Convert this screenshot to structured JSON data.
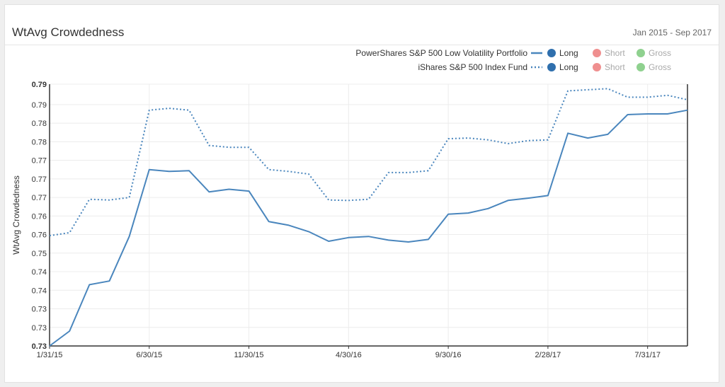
{
  "header": {
    "title": "WtAvg Crowdedness",
    "date_range": "Jan 2015 - Sep 2017"
  },
  "legend": {
    "rows": [
      {
        "name": "PowerShares S&P 500 Low Volatility Portfolio",
        "style": "solid",
        "toggles": [
          {
            "label": "Long",
            "active": true
          },
          {
            "label": "Short",
            "active": false
          },
          {
            "label": "Gross",
            "active": false
          }
        ]
      },
      {
        "name": "iShares S&P 500 Index Fund",
        "style": "dotted",
        "toggles": [
          {
            "label": "Long",
            "active": true
          },
          {
            "label": "Short",
            "active": false
          },
          {
            "label": "Gross",
            "active": false
          }
        ]
      }
    ],
    "colors": {
      "long": "#2f6fad",
      "short": "#ef8f8f",
      "gross": "#8fd18f"
    }
  },
  "chart_data": {
    "type": "line",
    "ylabel": "WtAvg Crowdedness",
    "xlabel": "",
    "ylim": [
      0.725,
      0.7955
    ],
    "ytick_values": [
      0.725,
      0.73,
      0.735,
      0.74,
      0.745,
      0.75,
      0.755,
      0.76,
      0.765,
      0.77,
      0.775,
      0.78,
      0.785,
      0.79,
      0.7955
    ],
    "ytick_labels": [
      "0.73",
      "0.73",
      "0.73",
      "0.74",
      "0.74",
      "0.75",
      "0.76",
      "0.76",
      "0.77",
      "0.77",
      "0.77",
      "0.78",
      "0.78",
      "0.79",
      "0.79"
    ],
    "x_index_range": [
      0,
      32
    ],
    "xticks": [
      {
        "index": 0,
        "label": "1/31/15"
      },
      {
        "index": 5,
        "label": "6/30/15"
      },
      {
        "index": 10,
        "label": "11/30/15"
      },
      {
        "index": 15,
        "label": "4/30/16"
      },
      {
        "index": 20,
        "label": "9/30/16"
      },
      {
        "index": 25,
        "label": "2/28/17"
      },
      {
        "index": 30,
        "label": "7/31/17"
      }
    ],
    "grid": true,
    "color": "#4a86bd",
    "series": [
      {
        "name": "PowerShares S&P 500 Low Volatility Portfolio",
        "style": "solid",
        "values": [
          0.725,
          0.729,
          0.7415,
          0.7425,
          0.7545,
          0.7725,
          0.772,
          0.7722,
          0.7665,
          0.7672,
          0.7667,
          0.7585,
          0.7575,
          0.7558,
          0.7532,
          0.7542,
          0.7545,
          0.7535,
          0.753,
          0.7537,
          0.7605,
          0.7608,
          0.762,
          0.7642,
          0.7648,
          0.7655,
          0.7823,
          0.781,
          0.782,
          0.7873,
          0.7875,
          0.7875,
          0.7885
        ]
      },
      {
        "name": "iShares S&P 500 Index Fund",
        "style": "dotted",
        "values": [
          0.7547,
          0.7555,
          0.7645,
          0.7643,
          0.765,
          0.7885,
          0.789,
          0.7885,
          0.779,
          0.7785,
          0.7785,
          0.7725,
          0.772,
          0.7713,
          0.7643,
          0.7642,
          0.7645,
          0.7717,
          0.7717,
          0.7722,
          0.7808,
          0.781,
          0.7805,
          0.7795,
          0.7803,
          0.7805,
          0.7937,
          0.794,
          0.7943,
          0.792,
          0.792,
          0.7925,
          0.7913
        ]
      }
    ]
  }
}
